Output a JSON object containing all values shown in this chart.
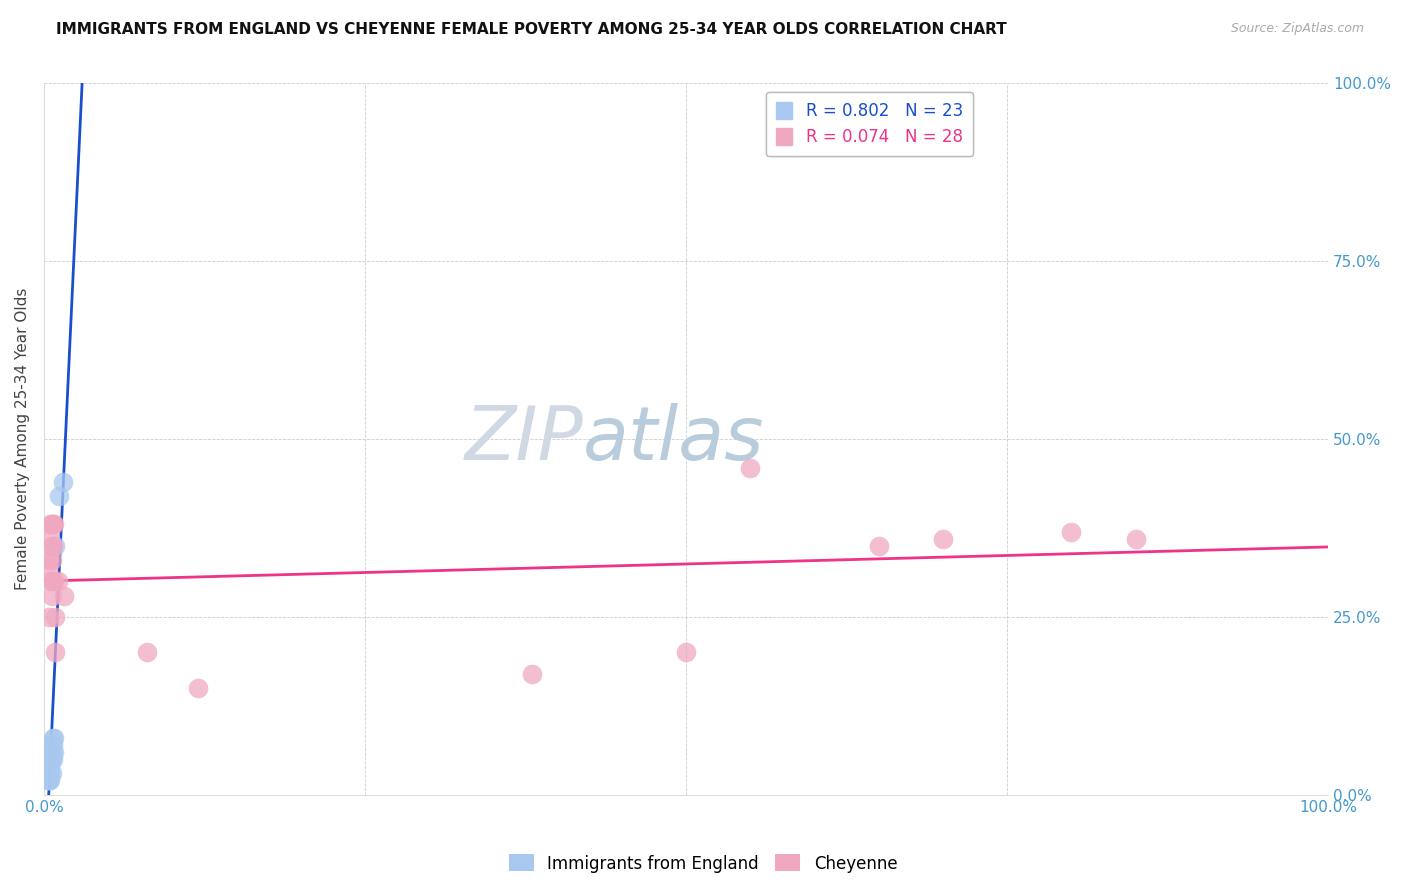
{
  "title": "IMMIGRANTS FROM ENGLAND VS CHEYENNE FEMALE POVERTY AMONG 25-34 YEAR OLDS CORRELATION CHART",
  "source": "Source: ZipAtlas.com",
  "ylabel": "Female Poverty Among 25-34 Year Olds",
  "xlim": [
    0.0,
    1.0
  ],
  "ylim": [
    0.0,
    1.0
  ],
  "legend_blue_label": "Immigrants from England",
  "legend_pink_label": "Cheyenne",
  "legend_blue_text": "R = 0.802   N = 23",
  "legend_pink_text": "R = 0.074   N = 28",
  "blue_color": "#a8c8f0",
  "pink_color": "#f0a8c0",
  "trendline_blue_color": "#1a4fcc",
  "trendline_pink_color": "#ee3388",
  "watermark_zip": "ZIP",
  "watermark_atlas": "atlas",
  "blue_points": [
    [
      0.003,
      0.02
    ],
    [
      0.003,
      0.04
    ],
    [
      0.004,
      0.02
    ],
    [
      0.004,
      0.03
    ],
    [
      0.004,
      0.05
    ],
    [
      0.004,
      0.06
    ],
    [
      0.005,
      0.02
    ],
    [
      0.005,
      0.03
    ],
    [
      0.005,
      0.04
    ],
    [
      0.005,
      0.05
    ],
    [
      0.005,
      0.06
    ],
    [
      0.005,
      0.07
    ],
    [
      0.006,
      0.03
    ],
    [
      0.006,
      0.05
    ],
    [
      0.006,
      0.06
    ],
    [
      0.007,
      0.05
    ],
    [
      0.007,
      0.07
    ],
    [
      0.007,
      0.08
    ],
    [
      0.008,
      0.06
    ],
    [
      0.008,
      0.08
    ],
    [
      0.009,
      0.35
    ],
    [
      0.012,
      0.42
    ],
    [
      0.015,
      0.44
    ]
  ],
  "pink_points": [
    [
      0.003,
      0.32
    ],
    [
      0.004,
      0.25
    ],
    [
      0.004,
      0.33
    ],
    [
      0.005,
      0.3
    ],
    [
      0.005,
      0.36
    ],
    [
      0.005,
      0.38
    ],
    [
      0.006,
      0.28
    ],
    [
      0.006,
      0.33
    ],
    [
      0.006,
      0.35
    ],
    [
      0.006,
      0.38
    ],
    [
      0.007,
      0.3
    ],
    [
      0.007,
      0.35
    ],
    [
      0.007,
      0.38
    ],
    [
      0.008,
      0.3
    ],
    [
      0.008,
      0.38
    ],
    [
      0.009,
      0.2
    ],
    [
      0.009,
      0.25
    ],
    [
      0.011,
      0.3
    ],
    [
      0.016,
      0.28
    ],
    [
      0.08,
      0.2
    ],
    [
      0.12,
      0.15
    ],
    [
      0.38,
      0.17
    ],
    [
      0.5,
      0.2
    ],
    [
      0.55,
      0.46
    ],
    [
      0.65,
      0.35
    ],
    [
      0.7,
      0.36
    ],
    [
      0.8,
      0.37
    ],
    [
      0.85,
      0.36
    ]
  ]
}
